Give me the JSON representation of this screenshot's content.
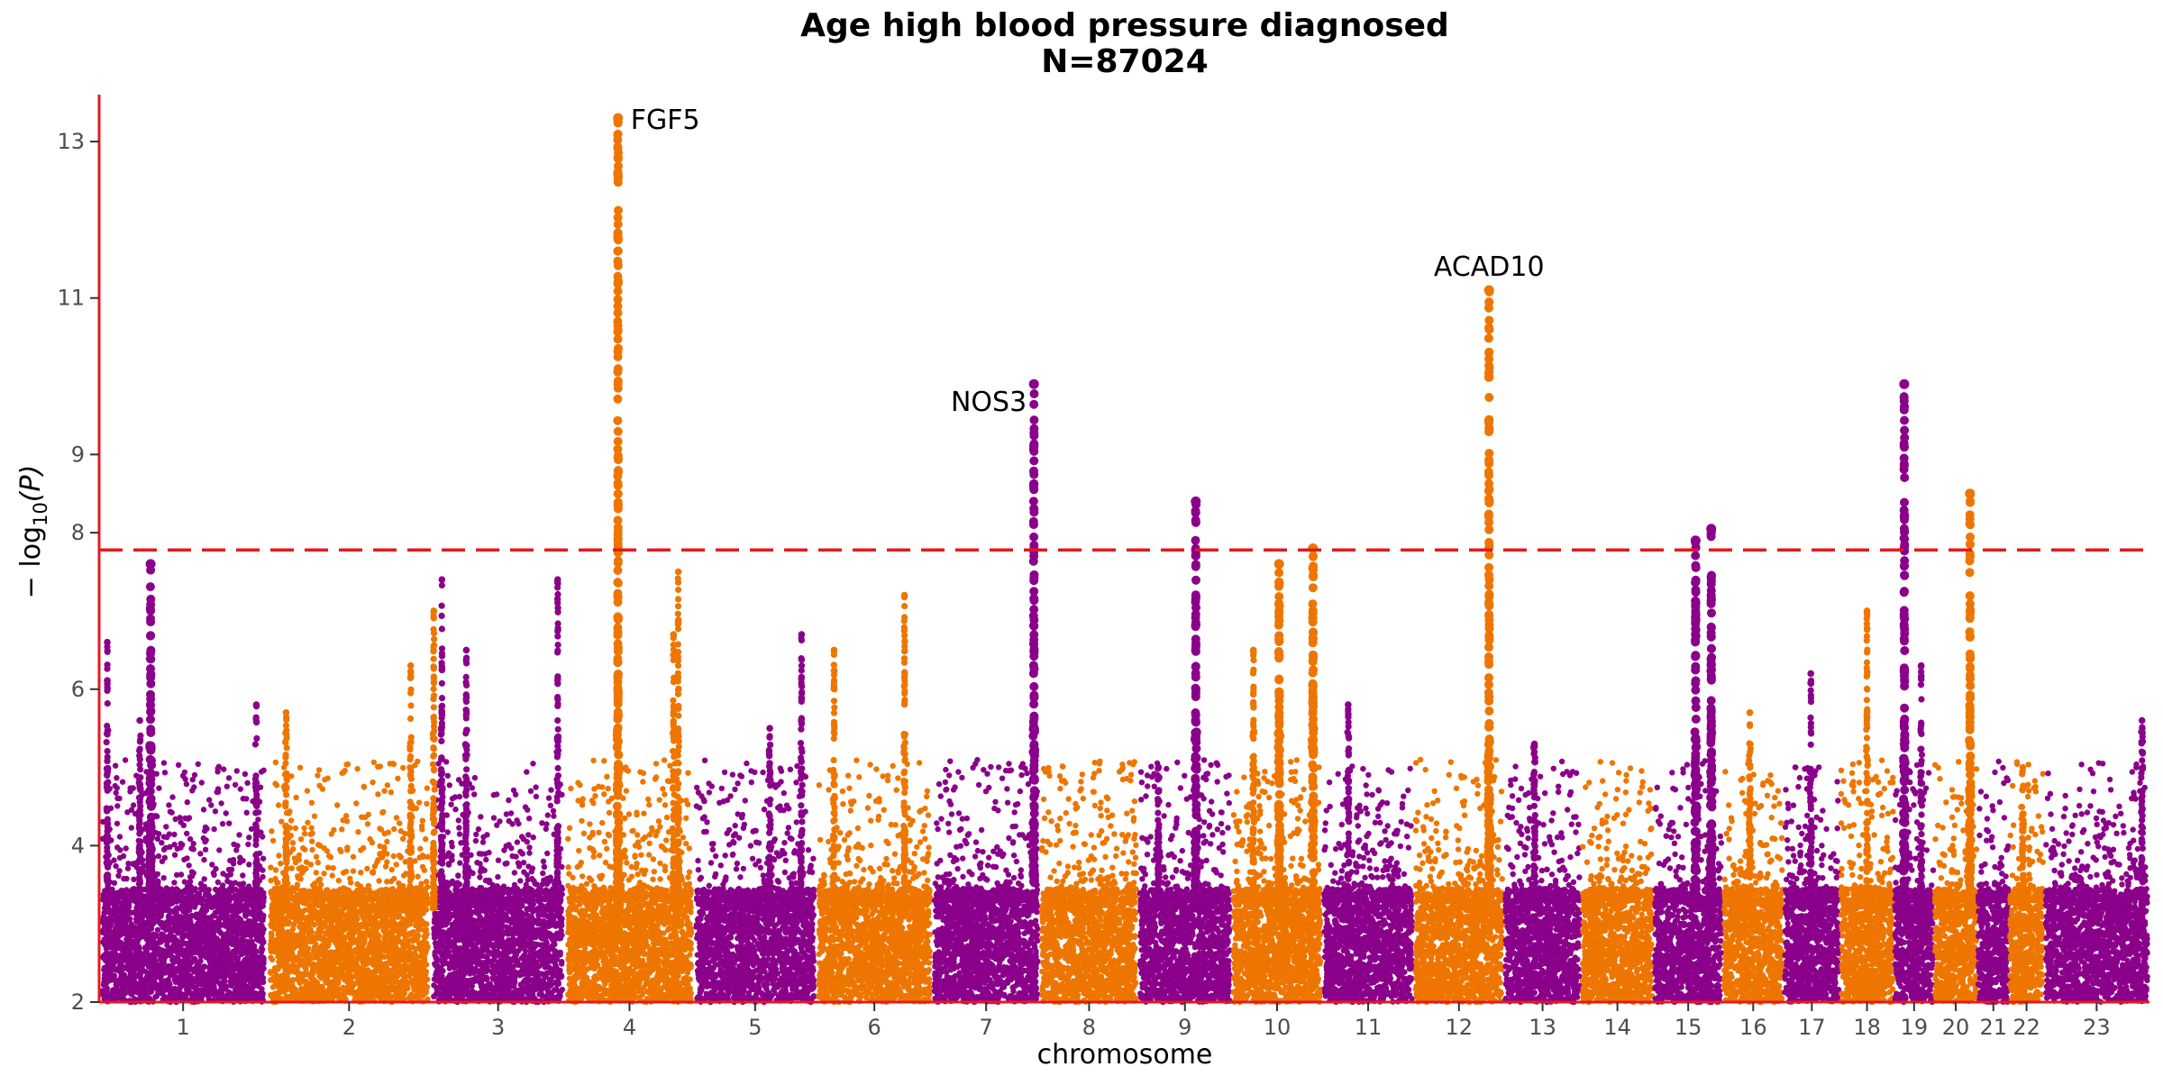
{
  "chart_data": {
    "type": "scatter",
    "title": "Age high blood pressure diagnosed",
    "subtitle": "N=87024",
    "xlabel": "chromosome",
    "ylabel_main": "− log",
    "ylabel_sub": "10",
    "ylabel_tail": "(P)",
    "ylim": [
      2,
      13.6
    ],
    "yticks": [
      2,
      4,
      6,
      8,
      9,
      11,
      13
    ],
    "grid": false,
    "legend": "none",
    "significance_line": 7.78,
    "colors": {
      "odd_chromosome": "#8B008B",
      "even_chromosome": "#EE7600",
      "threshold": "#E41A1C",
      "axis": "#E41A1C"
    },
    "chromosomes": [
      {
        "label": "1",
        "start": 0,
        "end": 248
      },
      {
        "label": "2",
        "start": 248,
        "end": 490
      },
      {
        "label": "3",
        "start": 490,
        "end": 688
      },
      {
        "label": "4",
        "start": 688,
        "end": 878
      },
      {
        "label": "5",
        "start": 878,
        "end": 1059
      },
      {
        "label": "6",
        "start": 1059,
        "end": 1230
      },
      {
        "label": "7",
        "start": 1230,
        "end": 1389
      },
      {
        "label": "8",
        "start": 1389,
        "end": 1534
      },
      {
        "label": "9",
        "start": 1534,
        "end": 1672
      },
      {
        "label": "10",
        "start": 1672,
        "end": 1806
      },
      {
        "label": "11",
        "start": 1806,
        "end": 1941
      },
      {
        "label": "12",
        "start": 1941,
        "end": 2074
      },
      {
        "label": "13",
        "start": 2074,
        "end": 2188
      },
      {
        "label": "14",
        "start": 2188,
        "end": 2295
      },
      {
        "label": "15",
        "start": 2295,
        "end": 2397
      },
      {
        "label": "16",
        "start": 2397,
        "end": 2487
      },
      {
        "label": "17",
        "start": 2487,
        "end": 2570
      },
      {
        "label": "18",
        "start": 2570,
        "end": 2650
      },
      {
        "label": "19",
        "start": 2650,
        "end": 2709
      },
      {
        "label": "20",
        "start": 2709,
        "end": 2773
      },
      {
        "label": "21",
        "start": 2773,
        "end": 2820
      },
      {
        "label": "22",
        "start": 2820,
        "end": 2871
      },
      {
        "label": "23",
        "start": 2871,
        "end": 3027
      }
    ],
    "peaks": [
      {
        "chr": "1",
        "pos": 12,
        "max": 6.6
      },
      {
        "chr": "1",
        "pos": 76,
        "max": 7.6
      },
      {
        "chr": "1",
        "pos": 60,
        "max": 5.6
      },
      {
        "chr": "1",
        "pos": 232,
        "max": 5.8
      },
      {
        "chr": "2",
        "pos": 28,
        "max": 5.7
      },
      {
        "chr": "2",
        "pos": 212,
        "max": 6.3
      },
      {
        "chr": "2",
        "pos": 246,
        "max": 7.0
      },
      {
        "chr": "3",
        "pos": 16,
        "max": 7.4
      },
      {
        "chr": "3",
        "pos": 52,
        "max": 6.5
      },
      {
        "chr": "3",
        "pos": 187,
        "max": 7.4
      },
      {
        "chr": "4",
        "pos": 78,
        "max": 13.3
      },
      {
        "chr": "4",
        "pos": 167,
        "max": 7.5
      },
      {
        "chr": "4",
        "pos": 160,
        "max": 6.7
      },
      {
        "chr": "5",
        "pos": 112,
        "max": 5.5
      },
      {
        "chr": "5",
        "pos": 159,
        "max": 6.7
      },
      {
        "chr": "6",
        "pos": 26,
        "max": 6.5
      },
      {
        "chr": "6",
        "pos": 130,
        "max": 7.2
      },
      {
        "chr": "7",
        "pos": 150,
        "max": 9.9
      },
      {
        "chr": "9",
        "pos": 30,
        "max": 5.0
      },
      {
        "chr": "9",
        "pos": 85,
        "max": 8.4
      },
      {
        "chr": "10",
        "pos": 32,
        "max": 6.5
      },
      {
        "chr": "10",
        "pos": 70,
        "max": 7.6
      },
      {
        "chr": "10",
        "pos": 120,
        "max": 7.8
      },
      {
        "chr": "11",
        "pos": 38,
        "max": 5.8
      },
      {
        "chr": "12",
        "pos": 111,
        "max": 11.1
      },
      {
        "chr": "13",
        "pos": 45,
        "max": 5.3
      },
      {
        "chr": "15",
        "pos": 62,
        "max": 7.9
      },
      {
        "chr": "15",
        "pos": 85,
        "max": 8.05
      },
      {
        "chr": "16",
        "pos": 40,
        "max": 5.7
      },
      {
        "chr": "17",
        "pos": 40,
        "max": 6.2
      },
      {
        "chr": "18",
        "pos": 40,
        "max": 7.0
      },
      {
        "chr": "19",
        "pos": 15,
        "max": 9.9
      },
      {
        "chr": "19",
        "pos": 40,
        "max": 6.3
      },
      {
        "chr": "20",
        "pos": 53,
        "max": 8.5
      },
      {
        "chr": "22",
        "pos": 20,
        "max": 5.0
      },
      {
        "chr": "23",
        "pos": 145,
        "max": 5.6
      }
    ],
    "annotations": [
      {
        "label": "FGF5",
        "chr": "4",
        "pos": 78,
        "y": 13.3,
        "anchor": "start"
      },
      {
        "label": "NOS3",
        "chr": "7",
        "pos": 150,
        "y": 9.9,
        "anchor": "end"
      },
      {
        "label": "ACAD10",
        "chr": "12",
        "pos": 111,
        "y": 11.1,
        "anchor": "middle"
      }
    ]
  }
}
